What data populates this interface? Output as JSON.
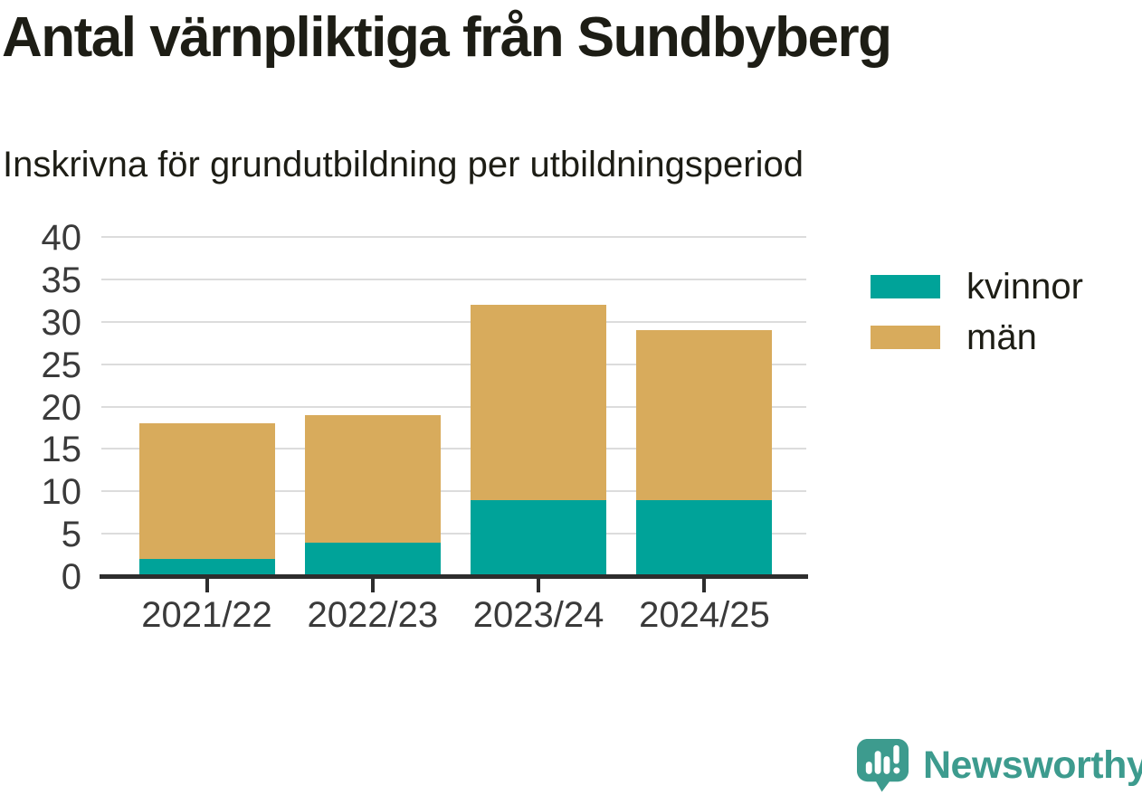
{
  "header": {
    "title": "Antal värnpliktiga från Sundbyberg",
    "subtitle": "Inskrivna för grundutbildning per utbildningsperiod"
  },
  "chart_data": {
    "type": "bar",
    "stacked": true,
    "title": "Antal värnpliktiga från Sundbyberg",
    "subtitle": "Inskrivna för grundutbildning per utbildningsperiod",
    "categories": [
      "2021/22",
      "2022/23",
      "2023/24",
      "2024/25"
    ],
    "series": [
      {
        "name": "kvinnor",
        "color": "#00A399",
        "values": [
          2,
          4,
          9,
          9
        ]
      },
      {
        "name": "män",
        "color": "#D8AB5C",
        "values": [
          16,
          15,
          23,
          20
        ]
      }
    ],
    "stacked_totals": [
      18,
      19,
      32,
      29
    ],
    "xlabel": "",
    "ylabel": "",
    "ylim": [
      0,
      40
    ],
    "yticks": [
      0,
      5,
      10,
      15,
      20,
      25,
      30,
      35,
      40
    ],
    "grid": "horizontal",
    "legend_position": "right",
    "colors": {
      "grid": "#dcdcdc",
      "axis": "#2d2d2d",
      "text": "#1d1d15",
      "tick_text": "#3a3a3a"
    }
  },
  "branding": {
    "name": "Newsworthy",
    "color": "#3D9B8E",
    "icon": "newsworthy-logo-icon"
  }
}
